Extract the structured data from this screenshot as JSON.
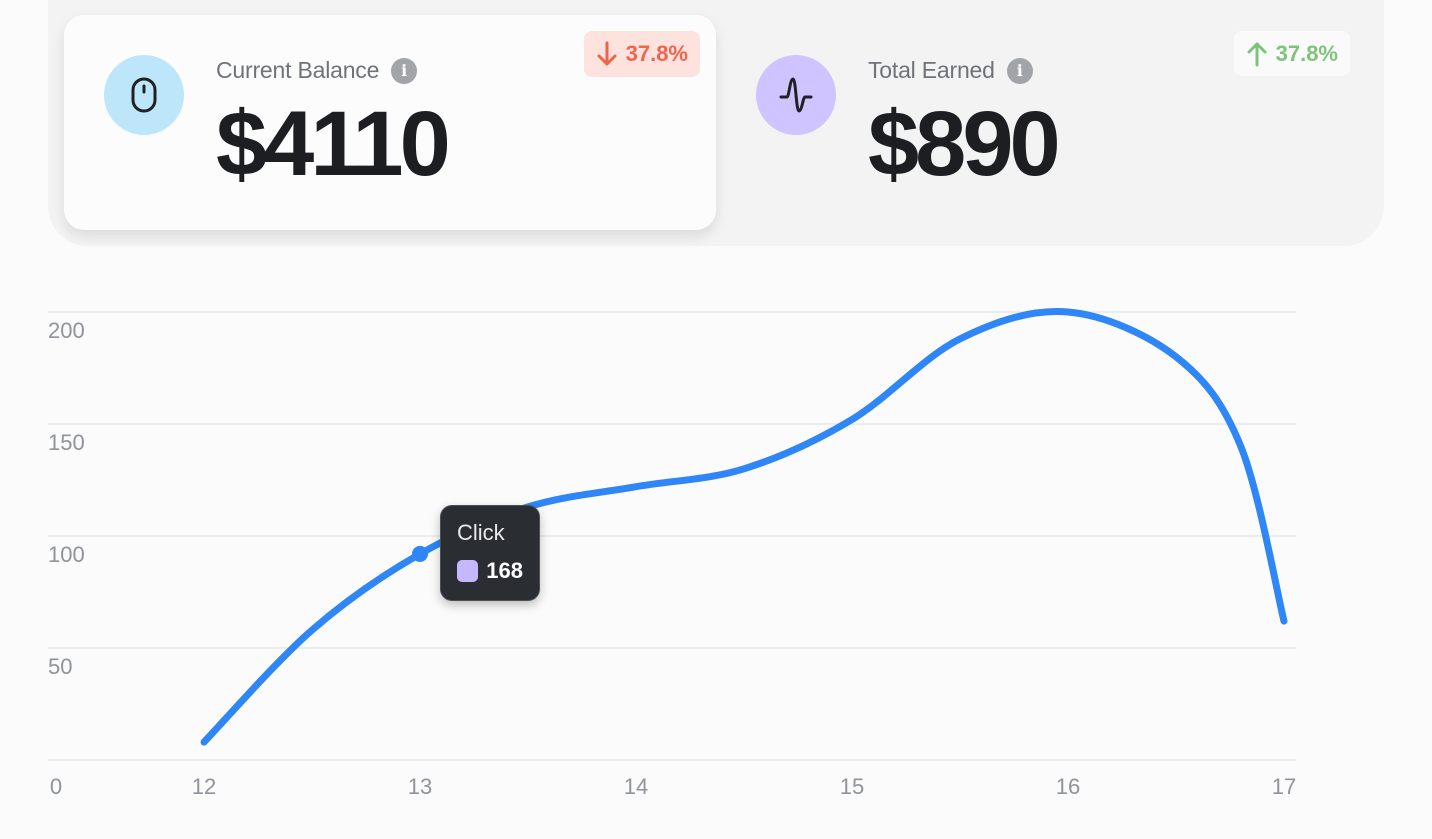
{
  "balance_card": {
    "label": "Current Balance",
    "amount": "$4110",
    "delta": "37.8%",
    "delta_direction": "down",
    "icon": "mouse-icon",
    "icon_bg": "#bde6fb"
  },
  "earned_card": {
    "label": "Total Earned",
    "amount": "$890",
    "delta": "37.8%",
    "delta_direction": "up",
    "icon": "activity-pulse-icon",
    "icon_bg": "#cfc4ff"
  },
  "tooltip": {
    "title": "Click",
    "value": "168",
    "swatch_color": "#c6b8ff"
  },
  "chart_data": {
    "type": "line",
    "x_ticks": [
      "0",
      "12",
      "13",
      "14",
      "15",
      "16",
      "17"
    ],
    "y_ticks": [
      "50",
      "100",
      "150",
      "200"
    ],
    "ylim": [
      0,
      220
    ],
    "grid": true,
    "line_color": "#2f86f6",
    "series": [
      {
        "points": [
          {
            "x": 12,
            "y": 8
          },
          {
            "x": 12.5,
            "y": 58
          },
          {
            "x": 13,
            "y": 92
          },
          {
            "x": 13.5,
            "y": 113
          },
          {
            "x": 14,
            "y": 122
          },
          {
            "x": 14.5,
            "y": 130
          },
          {
            "x": 15,
            "y": 152
          },
          {
            "x": 15.5,
            "y": 188
          },
          {
            "x": 16,
            "y": 200
          },
          {
            "x": 16.5,
            "y": 180
          },
          {
            "x": 16.8,
            "y": 140
          },
          {
            "x": 17,
            "y": 62
          }
        ],
        "highlight": {
          "x": 13,
          "y": 92
        }
      }
    ]
  }
}
